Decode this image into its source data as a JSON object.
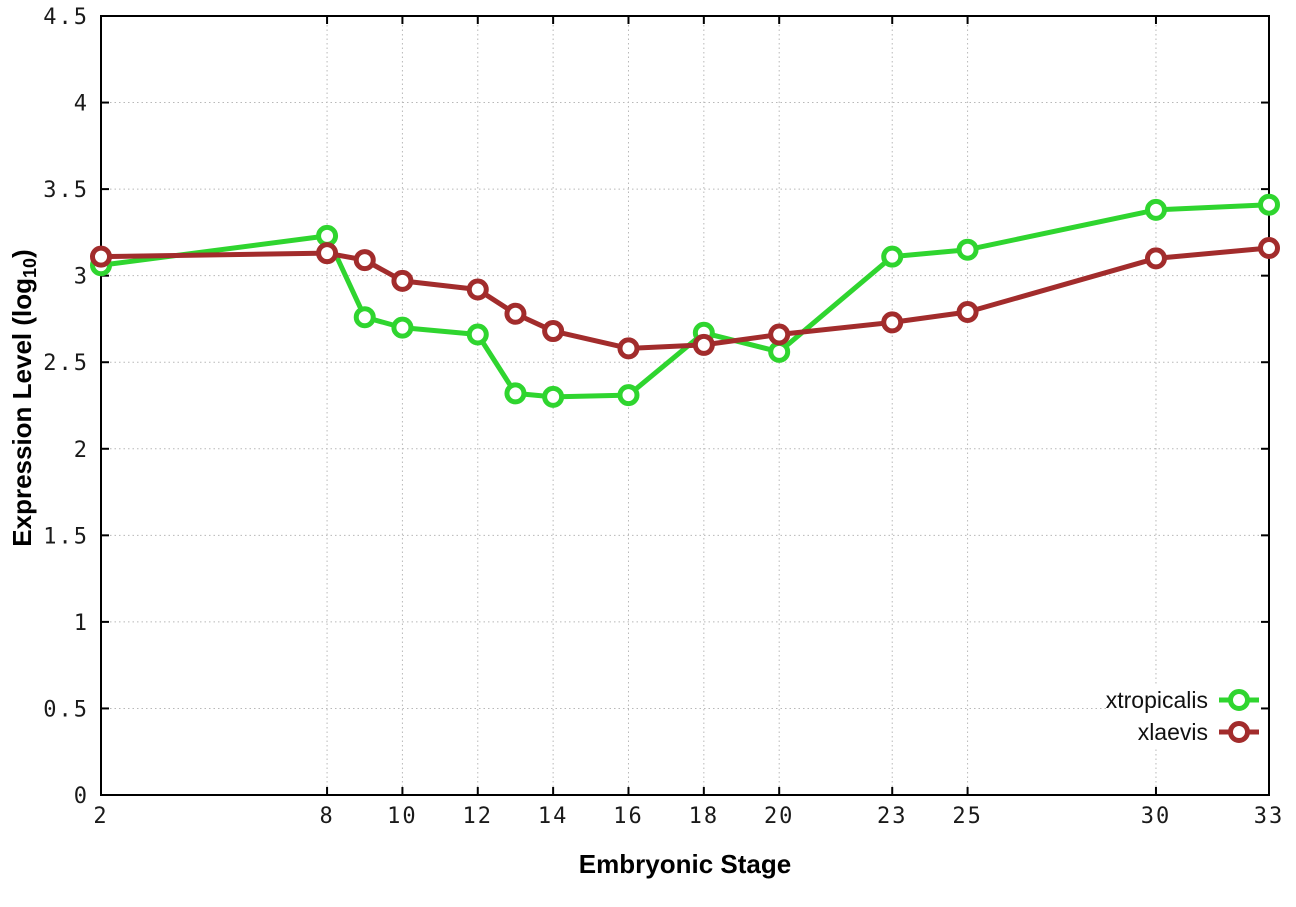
{
  "figure": {
    "xlabel": "Embryonic Stage",
    "ylabel_prefix": "Expression Level (log",
    "ylabel_subscript": "10",
    "ylabel_suffix": ")"
  },
  "chart_data": {
    "type": "line",
    "title": "",
    "xlabel": "Embryonic Stage",
    "ylabel": "Expression Level (log10)",
    "xlim": [
      2,
      33
    ],
    "ylim": [
      0,
      4.5
    ],
    "grid": true,
    "legend_position": "inside-bottom-right",
    "x": [
      2,
      8,
      9,
      10,
      12,
      13,
      14,
      16,
      18,
      20,
      23,
      25,
      30,
      33
    ],
    "xticks": [
      2,
      8,
      10,
      12,
      14,
      16,
      18,
      20,
      23,
      25,
      30,
      33
    ],
    "xtick_labels": [
      "2",
      "8",
      "10",
      "12",
      "14",
      "16",
      "18",
      "20",
      "23",
      "25",
      "30",
      "33"
    ],
    "yticks": [
      0,
      0.5,
      1,
      1.5,
      2,
      2.5,
      3,
      3.5,
      4,
      4.5
    ],
    "ytick_labels": [
      "0",
      "0.5",
      "1",
      "1.5",
      "2",
      "2.5",
      "3",
      "3.5",
      "4",
      "4.5"
    ],
    "series": [
      {
        "name": "xtropicalis",
        "color": "#2fd52f",
        "marker": "open-circle",
        "values": [
          3.06,
          3.23,
          2.76,
          2.7,
          2.66,
          2.32,
          2.3,
          2.31,
          2.67,
          2.56,
          3.11,
          3.15,
          3.38,
          3.41
        ]
      },
      {
        "name": "xlaevis",
        "color": "#a22c2c",
        "marker": "open-circle",
        "values": [
          3.11,
          3.13,
          3.09,
          2.97,
          2.92,
          2.78,
          2.68,
          2.58,
          2.6,
          2.66,
          2.73,
          2.79,
          3.1,
          3.16
        ]
      }
    ],
    "colors": {
      "grid": "#b8b8b8",
      "axis": "#000000",
      "tick_text": "#1a1a1a"
    }
  }
}
